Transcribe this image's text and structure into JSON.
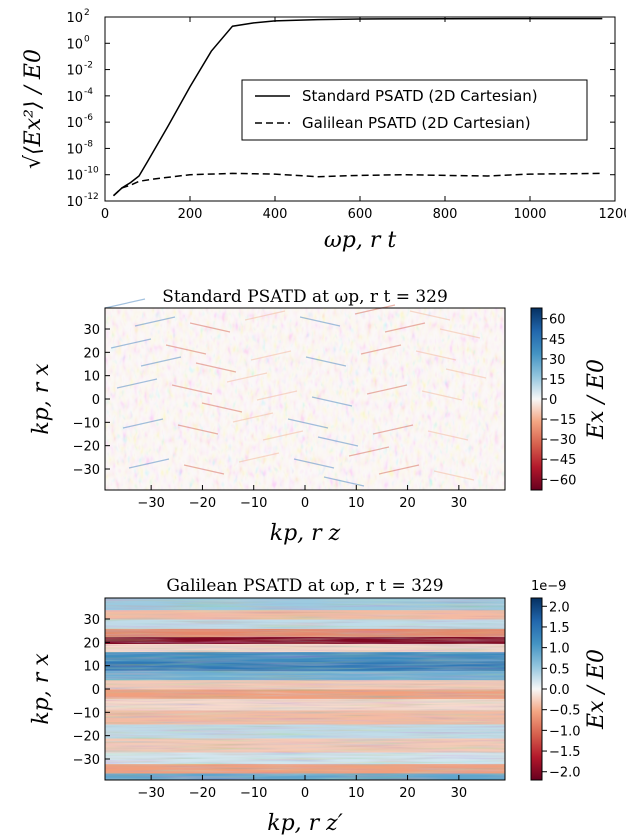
{
  "chart_data": [
    {
      "type": "line",
      "xlabel": "ωp, r t",
      "ylabel": "√⟨Ex²⟩ / E0",
      "xlim": [
        0,
        1200
      ],
      "ylim_log10": [
        -12,
        2
      ],
      "yscale": "log",
      "x_ticks": [
        "0",
        "200",
        "400",
        "600",
        "800",
        "1000",
        "1200"
      ],
      "y_tick_exponents": [
        "-12",
        "-10",
        "-8",
        "-6",
        "-4",
        "-2",
        "0",
        "2"
      ],
      "y_tick_base": "10",
      "legend_position": "center-right",
      "series": [
        {
          "name": "Standard PSATD (2D Cartesian)",
          "style": "solid",
          "points": [
            [
              20,
              -11.6
            ],
            [
              40,
              -11.0
            ],
            [
              60,
              -10.6
            ],
            [
              80,
              -10.1
            ],
            [
              100,
              -9.0
            ],
            [
              150,
              -6.2
            ],
            [
              200,
              -3.3
            ],
            [
              250,
              -0.6
            ],
            [
              300,
              1.3
            ],
            [
              350,
              1.55
            ],
            [
              400,
              1.7
            ],
            [
              500,
              1.8
            ],
            [
              600,
              1.85
            ],
            [
              800,
              1.87
            ],
            [
              1000,
              1.88
            ],
            [
              1170,
              1.88
            ]
          ]
        },
        {
          "name": "Galilean PSATD (2D Cartesian)",
          "style": "dashed",
          "points": [
            [
              20,
              -11.6
            ],
            [
              40,
              -11.0
            ],
            [
              60,
              -10.8
            ],
            [
              80,
              -10.5
            ],
            [
              120,
              -10.3
            ],
            [
              200,
              -10.0
            ],
            [
              300,
              -9.9
            ],
            [
              400,
              -9.95
            ],
            [
              500,
              -10.15
            ],
            [
              600,
              -10.05
            ],
            [
              700,
              -10.0
            ],
            [
              800,
              -10.05
            ],
            [
              900,
              -10.1
            ],
            [
              1000,
              -9.95
            ],
            [
              1170,
              -9.9
            ]
          ]
        }
      ]
    },
    {
      "type": "heatmap",
      "title": "Standard PSATD at ωp, r t = 329",
      "xlabel": "kp, r z",
      "ylabel": "kp, r x",
      "x_ticks": [
        "−30",
        "−20",
        "−10",
        "0",
        "10",
        "20",
        "30"
      ],
      "y_ticks": [
        "−30",
        "−20",
        "−10",
        "0",
        "10",
        "20",
        "30"
      ],
      "extent": [
        -39,
        39,
        -39,
        39
      ],
      "colorbar_label": "Ex / E0",
      "colorbar_ticks": [
        "60",
        "45",
        "30",
        "15",
        "0",
        "−15",
        "−30",
        "−45",
        "−60"
      ],
      "vlim": [
        -68,
        68
      ],
      "colormap": "RdBu_r"
    },
    {
      "type": "heatmap",
      "title": "Galilean PSATD at ωp, r t = 329",
      "xlabel": "kp, r z′",
      "ylabel": "kp, r x",
      "x_ticks": [
        "−30",
        "−20",
        "−10",
        "0",
        "10",
        "20",
        "30"
      ],
      "y_ticks": [
        "−30",
        "−20",
        "−10",
        "0",
        "10",
        "20",
        "30"
      ],
      "extent": [
        -39,
        39,
        -39,
        39
      ],
      "colorbar_label": "Ex / E0",
      "colorbar_ticks": [
        "2.0",
        "1.5",
        "1.0",
        "0.5",
        "0.0",
        "−0.5",
        "−1.0",
        "−1.5",
        "−2.0"
      ],
      "colorbar_offset": "1e−9",
      "vlim": [
        -2.2,
        2.2
      ],
      "colormap": "RdBu_r",
      "bands_x_vs_value": [
        [
          -38,
          0.9
        ],
        [
          -34,
          -0.6
        ],
        [
          -30,
          0.2
        ],
        [
          -24,
          -0.3
        ],
        [
          -18,
          0.3
        ],
        [
          -12,
          -0.4
        ],
        [
          -6,
          -0.2
        ],
        [
          -2,
          -0.6
        ],
        [
          2,
          -0.3
        ],
        [
          6,
          0.8
        ],
        [
          10,
          1.4
        ],
        [
          14,
          1.2
        ],
        [
          18,
          -0.2
        ],
        [
          21,
          -2.0
        ],
        [
          24,
          -0.8
        ],
        [
          28,
          0.3
        ],
        [
          32,
          -0.4
        ],
        [
          36,
          0.5
        ]
      ]
    }
  ]
}
